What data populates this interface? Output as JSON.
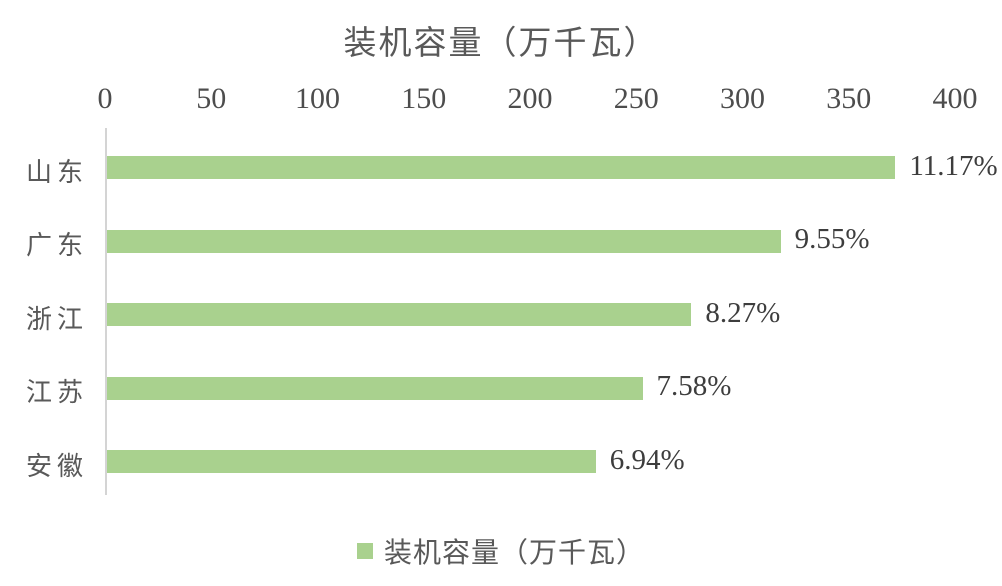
{
  "chart_data": {
    "type": "bar",
    "orientation": "horizontal",
    "title": "装机容量（万千瓦）",
    "categories": [
      "山东",
      "广东",
      "浙江",
      "江苏",
      "安徽"
    ],
    "values": [
      371,
      317,
      275,
      252,
      230
    ],
    "data_labels": [
      "11.17%",
      "9.55%",
      "8.27%",
      "7.58%",
      "6.94%"
    ],
    "x_ticks": [
      0,
      50,
      100,
      150,
      200,
      250,
      300,
      350,
      400
    ],
    "xlim": [
      0,
      400
    ],
    "axis_position": "top",
    "grid": false,
    "legend": {
      "label": "装机容量（万千瓦）",
      "position": "bottom"
    },
    "colors": {
      "bar": "#a9d18e",
      "axis_line": "#d4d4d4",
      "title_text": "#595959",
      "tick_text": "#4d4d4d",
      "value_text": "#3d3d3d"
    }
  }
}
